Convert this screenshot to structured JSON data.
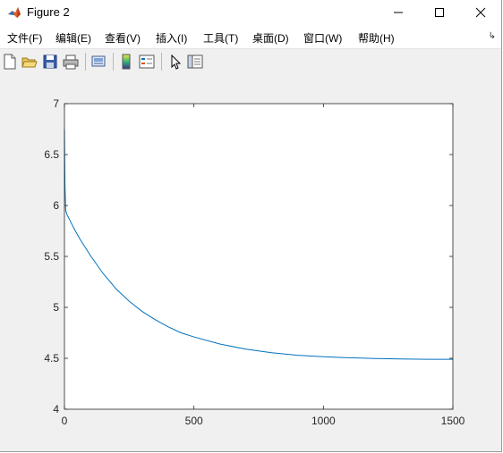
{
  "window": {
    "title": "Figure 2"
  },
  "menubar": {
    "items": [
      {
        "label": "文件(F)"
      },
      {
        "label": "编辑(E)"
      },
      {
        "label": "查看(V)"
      },
      {
        "label": "插入(I)"
      },
      {
        "label": "工具(T)"
      },
      {
        "label": "桌面(D)"
      },
      {
        "label": "窗口(W)"
      },
      {
        "label": "帮助(H)"
      }
    ]
  },
  "toolbar": {
    "buttons": [
      {
        "icon": "new-figure-icon"
      },
      {
        "icon": "open-file-icon"
      },
      {
        "icon": "save-icon"
      },
      {
        "icon": "print-icon"
      },
      {
        "icon": "link-plot-icon"
      },
      {
        "icon": "insert-colorbar-icon"
      },
      {
        "icon": "insert-legend-icon"
      },
      {
        "icon": "edit-plot-icon"
      },
      {
        "icon": "property-inspector-icon"
      }
    ]
  },
  "chart_data": {
    "type": "line",
    "xlim": [
      0,
      1500
    ],
    "ylim": [
      4,
      7
    ],
    "x_ticks": [
      "0",
      "500",
      "1000",
      "1500"
    ],
    "y_ticks": [
      "4",
      "4.5",
      "5",
      "5.5",
      "6",
      "6.5",
      "7"
    ],
    "grid": false,
    "series_color": "#0072bd",
    "series": [
      {
        "x": [
          0,
          2,
          5,
          10,
          20,
          40,
          60,
          80,
          100,
          150,
          200,
          250,
          300,
          350,
          400,
          450,
          500,
          600,
          700,
          800,
          900,
          1000,
          1100,
          1200,
          1300,
          1400,
          1500
        ],
        "values": [
          6.75,
          6.2,
          5.95,
          5.91,
          5.86,
          5.76,
          5.67,
          5.59,
          5.51,
          5.33,
          5.18,
          5.06,
          4.96,
          4.88,
          4.81,
          4.75,
          4.71,
          4.64,
          4.59,
          4.555,
          4.53,
          4.515,
          4.505,
          4.498,
          4.493,
          4.49,
          4.49
        ]
      }
    ]
  }
}
